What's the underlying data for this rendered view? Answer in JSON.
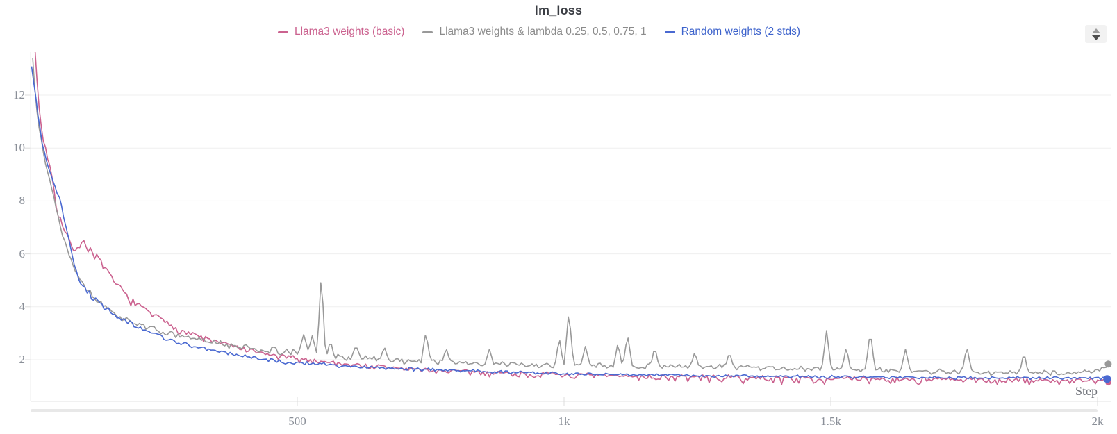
{
  "title": "lm_loss",
  "legend": {
    "items": [
      {
        "label": "Llama3 weights (basic)",
        "color": "#cb628f"
      },
      {
        "label": "Llama3 weights & lambda 0.25, 0.5, 0.75, 1",
        "color": "#999999",
        "text_color": "#8b8b8b"
      },
      {
        "label": "Random weights (2 stds)",
        "color": "#4a69d1",
        "text_color": "#3d63cc"
      }
    ]
  },
  "controls": {
    "stepper_icon": "up-down-stepper"
  },
  "chart_data": {
    "type": "line",
    "title": "lm_loss",
    "xlabel": "Step",
    "ylabel": "",
    "legend_position": "top",
    "grid": "horizontal-only",
    "x_axis": {
      "label": "Step",
      "range": [
        0,
        2026
      ],
      "ticks": [
        {
          "value": 500,
          "label": "500"
        },
        {
          "value": 1000,
          "label": "1k"
        },
        {
          "value": 1500,
          "label": "1.5k"
        },
        {
          "value": 2000,
          "label": "2k"
        }
      ]
    },
    "y_axis": {
      "range": [
        0.48,
        13.63
      ],
      "ticks": [
        {
          "value": 2,
          "label": "2"
        },
        {
          "value": 4,
          "label": "4"
        },
        {
          "value": 6,
          "label": "6"
        },
        {
          "value": 8,
          "label": "8"
        },
        {
          "value": 10,
          "label": "10"
        },
        {
          "value": 12,
          "label": "12"
        }
      ]
    },
    "series": [
      {
        "name": "Llama3 weights (basic)",
        "color": "#cb628f",
        "seed": 7,
        "down_bias": 2.2,
        "end_dot_radius": 4,
        "trend": [
          [
            4,
            15
          ],
          [
            8,
            13.8
          ],
          [
            14,
            12
          ],
          [
            20,
            10.8
          ],
          [
            28,
            10
          ],
          [
            36,
            9.4
          ],
          [
            44,
            8.4
          ],
          [
            52,
            7.6
          ],
          [
            62,
            6.9
          ],
          [
            72,
            6.5
          ],
          [
            80,
            6.3
          ],
          [
            92,
            6.3
          ],
          [
            100,
            6.45
          ],
          [
            108,
            6.3
          ],
          [
            118,
            6.05
          ],
          [
            130,
            5.75
          ],
          [
            142,
            5.35
          ],
          [
            158,
            4.95
          ],
          [
            175,
            4.55
          ],
          [
            195,
            4.15
          ],
          [
            215,
            3.9
          ],
          [
            235,
            3.65
          ],
          [
            260,
            3.35
          ],
          [
            285,
            3.1
          ],
          [
            315,
            2.9
          ],
          [
            345,
            2.7
          ],
          [
            375,
            2.55
          ],
          [
            410,
            2.35
          ],
          [
            450,
            2.18
          ],
          [
            490,
            2.08
          ],
          [
            530,
            1.98
          ],
          [
            580,
            1.87
          ],
          [
            640,
            1.76
          ],
          [
            700,
            1.67
          ],
          [
            780,
            1.58
          ],
          [
            860,
            1.52
          ],
          [
            950,
            1.46
          ],
          [
            1050,
            1.4
          ],
          [
            1150,
            1.37
          ],
          [
            1250,
            1.34
          ],
          [
            1400,
            1.3
          ],
          [
            1550,
            1.28
          ],
          [
            1700,
            1.25
          ],
          [
            1850,
            1.23
          ],
          [
            2020,
            1.2
          ]
        ],
        "noise": [
          [
            0,
            0.06
          ],
          [
            50,
            0.16
          ],
          [
            120,
            0.14
          ],
          [
            250,
            0.1
          ],
          [
            500,
            0.09
          ],
          [
            800,
            0.1
          ],
          [
            1200,
            0.11
          ],
          [
            2020,
            0.11
          ]
        ],
        "spikes": []
      },
      {
        "name": "Llama3 weights & lambda 0.25, 0.5, 0.75, 1",
        "color": "#999999",
        "seed": 13,
        "down_bias": 1,
        "end_dot_radius": 5,
        "trend": [
          [
            4,
            13.4
          ],
          [
            10,
            11.8
          ],
          [
            16,
            10.8
          ],
          [
            24,
            9.8
          ],
          [
            32,
            9.1
          ],
          [
            42,
            8.3
          ],
          [
            52,
            7.4
          ],
          [
            62,
            6.6
          ],
          [
            72,
            6.0
          ],
          [
            82,
            5.5
          ],
          [
            95,
            5.0
          ],
          [
            108,
            4.6
          ],
          [
            122,
            4.3
          ],
          [
            138,
            4.0
          ],
          [
            155,
            3.75
          ],
          [
            175,
            3.55
          ],
          [
            200,
            3.35
          ],
          [
            225,
            3.2
          ],
          [
            255,
            3.0
          ],
          [
            290,
            2.85
          ],
          [
            330,
            2.7
          ],
          [
            370,
            2.55
          ],
          [
            420,
            2.42
          ],
          [
            470,
            2.3
          ],
          [
            520,
            2.22
          ],
          [
            570,
            2.12
          ],
          [
            620,
            2.05
          ],
          [
            680,
            1.98
          ],
          [
            740,
            1.92
          ],
          [
            820,
            1.87
          ],
          [
            920,
            1.82
          ],
          [
            1020,
            1.78
          ],
          [
            1140,
            1.75
          ],
          [
            1260,
            1.72
          ],
          [
            1400,
            1.68
          ],
          [
            1550,
            1.62
          ],
          [
            1700,
            1.55
          ],
          [
            1850,
            1.5
          ],
          [
            1960,
            1.52
          ],
          [
            2005,
            1.6
          ],
          [
            2020,
            1.78
          ]
        ],
        "noise": [
          [
            0,
            0.08
          ],
          [
            100,
            0.12
          ],
          [
            300,
            0.12
          ],
          [
            440,
            0.16
          ],
          [
            600,
            0.14
          ],
          [
            900,
            0.14
          ],
          [
            1300,
            0.13
          ],
          [
            1700,
            0.12
          ],
          [
            2020,
            0.1
          ]
        ],
        "spikes": [
          [
            512,
            2.95,
            10
          ],
          [
            528,
            2.9,
            9
          ],
          [
            545,
            5.3,
            8
          ],
          [
            562,
            2.75,
            7
          ],
          [
            610,
            2.55,
            9
          ],
          [
            663,
            2.5,
            8
          ],
          [
            741,
            3.05,
            9
          ],
          [
            779,
            2.45,
            8
          ],
          [
            860,
            2.4,
            8
          ],
          [
            991,
            2.85,
            8
          ],
          [
            1009,
            3.85,
            9
          ],
          [
            1040,
            2.5,
            9
          ],
          [
            1101,
            2.65,
            8
          ],
          [
            1119,
            2.95,
            9
          ],
          [
            1170,
            2.5,
            8
          ],
          [
            1245,
            2.3,
            8
          ],
          [
            1310,
            2.3,
            8
          ],
          [
            1492,
            3.1,
            9
          ],
          [
            1529,
            2.5,
            8
          ],
          [
            1574,
            3.1,
            9
          ],
          [
            1640,
            2.4,
            9
          ],
          [
            1755,
            2.5,
            9
          ],
          [
            1862,
            2.3,
            8
          ]
        ]
      },
      {
        "name": "Random weights (2 stds)",
        "color": "#4a69d1",
        "seed": 21,
        "down_bias": 1,
        "end_dot_radius": 5.5,
        "trend": [
          [
            2,
            13.1
          ],
          [
            8,
            12.2
          ],
          [
            14,
            11.2
          ],
          [
            22,
            10.2
          ],
          [
            30,
            9.5
          ],
          [
            40,
            8.9
          ],
          [
            50,
            8.3
          ],
          [
            58,
            7.8
          ],
          [
            66,
            7.1
          ],
          [
            74,
            6.3
          ],
          [
            80,
            5.7
          ],
          [
            86,
            5.25
          ],
          [
            95,
            4.9
          ],
          [
            106,
            4.6
          ],
          [
            118,
            4.35
          ],
          [
            132,
            4.1
          ],
          [
            148,
            3.85
          ],
          [
            165,
            3.6
          ],
          [
            185,
            3.4
          ],
          [
            210,
            3.15
          ],
          [
            240,
            2.9
          ],
          [
            270,
            2.7
          ],
          [
            305,
            2.5
          ],
          [
            345,
            2.32
          ],
          [
            390,
            2.15
          ],
          [
            435,
            2.02
          ],
          [
            480,
            1.92
          ],
          [
            530,
            1.84
          ],
          [
            590,
            1.77
          ],
          [
            660,
            1.7
          ],
          [
            740,
            1.63
          ],
          [
            830,
            1.57
          ],
          [
            930,
            1.51
          ],
          [
            1040,
            1.46
          ],
          [
            1160,
            1.42
          ],
          [
            1300,
            1.39
          ],
          [
            1450,
            1.36
          ],
          [
            1600,
            1.33
          ],
          [
            1780,
            1.31
          ],
          [
            2020,
            1.3
          ]
        ],
        "noise": [
          [
            0,
            0.1
          ],
          [
            80,
            0.16
          ],
          [
            200,
            0.14
          ],
          [
            400,
            0.1
          ],
          [
            700,
            0.08
          ],
          [
            1200,
            0.07
          ],
          [
            2020,
            0.07
          ]
        ],
        "spikes": []
      }
    ]
  }
}
